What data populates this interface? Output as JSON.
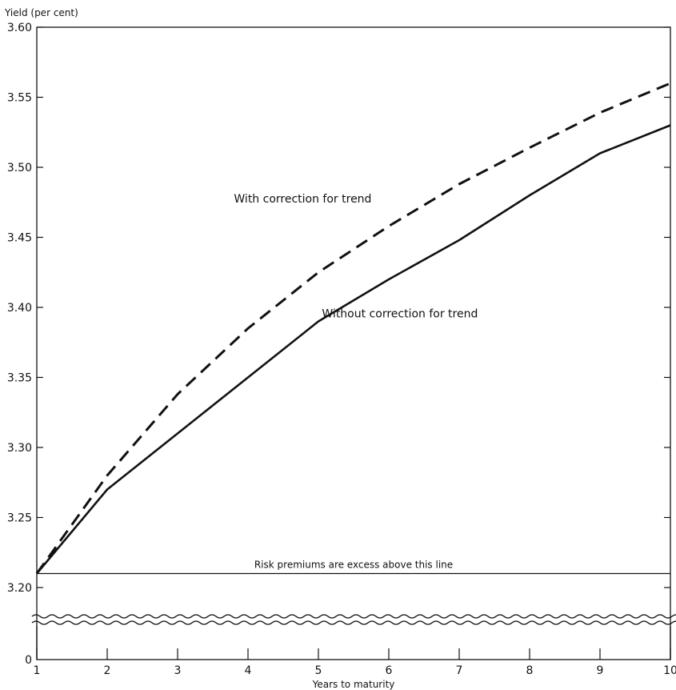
{
  "chart_data": {
    "type": "line",
    "title": "",
    "ylabel": "Yield (per cent)",
    "xlabel": "Years to maturity",
    "x": [
      1,
      2,
      3,
      4,
      5,
      6,
      7,
      8,
      9,
      10
    ],
    "xlim": [
      1,
      10
    ],
    "ylim": [
      3.2,
      3.6
    ],
    "y_axis_break": true,
    "y_axis_break_bottom_label": "0",
    "grid": false,
    "legend": "none",
    "x_tick_labels": [
      "1",
      "2",
      "3",
      "4",
      "5",
      "6",
      "7",
      "8",
      "9",
      "10"
    ],
    "y_ticks": [
      3.2,
      3.25,
      3.3,
      3.35,
      3.4,
      3.45,
      3.5,
      3.55,
      3.6
    ],
    "y_tick_labels": [
      "3.20",
      "3.25",
      "3.30",
      "3.35",
      "3.40",
      "3.45",
      "3.50",
      "3.55",
      "3.60"
    ],
    "series": [
      {
        "values": [
          3.21,
          3.28,
          3.338,
          3.385,
          3.425,
          3.458,
          3.488,
          3.514,
          3.539,
          3.56
        ],
        "style": "dashed",
        "color": "#111111"
      },
      {
        "values": [
          3.21,
          3.27,
          3.31,
          3.35,
          3.39,
          3.42,
          3.448,
          3.48,
          3.51,
          3.53
        ],
        "style": "solid",
        "color": "#111111"
      }
    ],
    "reference_line": {
      "y": 3.21,
      "label": "Risk premiums are excess above this line"
    },
    "annotations": [
      {
        "text": "With correction for trend",
        "x": 3.8,
        "y": 3.475
      },
      {
        "text": "Without correction for trend",
        "x": 5.05,
        "y": 3.393
      }
    ]
  }
}
